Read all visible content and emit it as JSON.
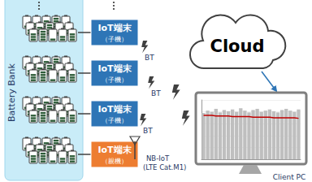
{
  "battery_bank": {
    "label": "Battery Bank"
  },
  "devices": [
    {
      "label": "IoT端末",
      "role": "（子機）",
      "link": "BT"
    },
    {
      "label": "IoT端末",
      "role": "（子機）",
      "link": "BT"
    },
    {
      "label": "IoT端末",
      "role": "（子機）",
      "link": "BT"
    },
    {
      "label": "IoT端末",
      "role": "（親機）",
      "link_lines": [
        "NB-IoT",
        "(LTE Cat.M1)"
      ]
    }
  ],
  "cloud": {
    "label": "Cloud"
  },
  "client_pc": {
    "label": "Client PC"
  },
  "chart_data": {
    "type": "bar",
    "categories": [
      null,
      null,
      null,
      null,
      null,
      null,
      null,
      null,
      null,
      null,
      null,
      null,
      null,
      null,
      null,
      null,
      null,
      null,
      null,
      null,
      null,
      null,
      null,
      null
    ],
    "series": [
      {
        "type": "bar",
        "color": "#bfbfbf",
        "values": [
          78,
          82,
          80,
          85,
          79,
          83,
          81,
          84,
          80,
          86,
          82,
          79,
          83,
          85,
          80,
          82,
          84,
          81,
          79,
          83,
          85,
          82,
          80,
          84
        ]
      },
      {
        "type": "line",
        "color": "#c00000",
        "values": [
          74,
          74,
          74,
          73,
          73,
          73,
          73,
          72,
          72,
          72,
          72,
          72,
          71,
          71,
          71,
          71,
          71,
          70,
          70,
          70,
          70,
          70,
          70,
          69
        ]
      }
    ],
    "ylim": [
      0,
      100
    ],
    "yticks": [
      0,
      20,
      40,
      60,
      80,
      100
    ],
    "grid": true,
    "tick_labels": false
  }
}
